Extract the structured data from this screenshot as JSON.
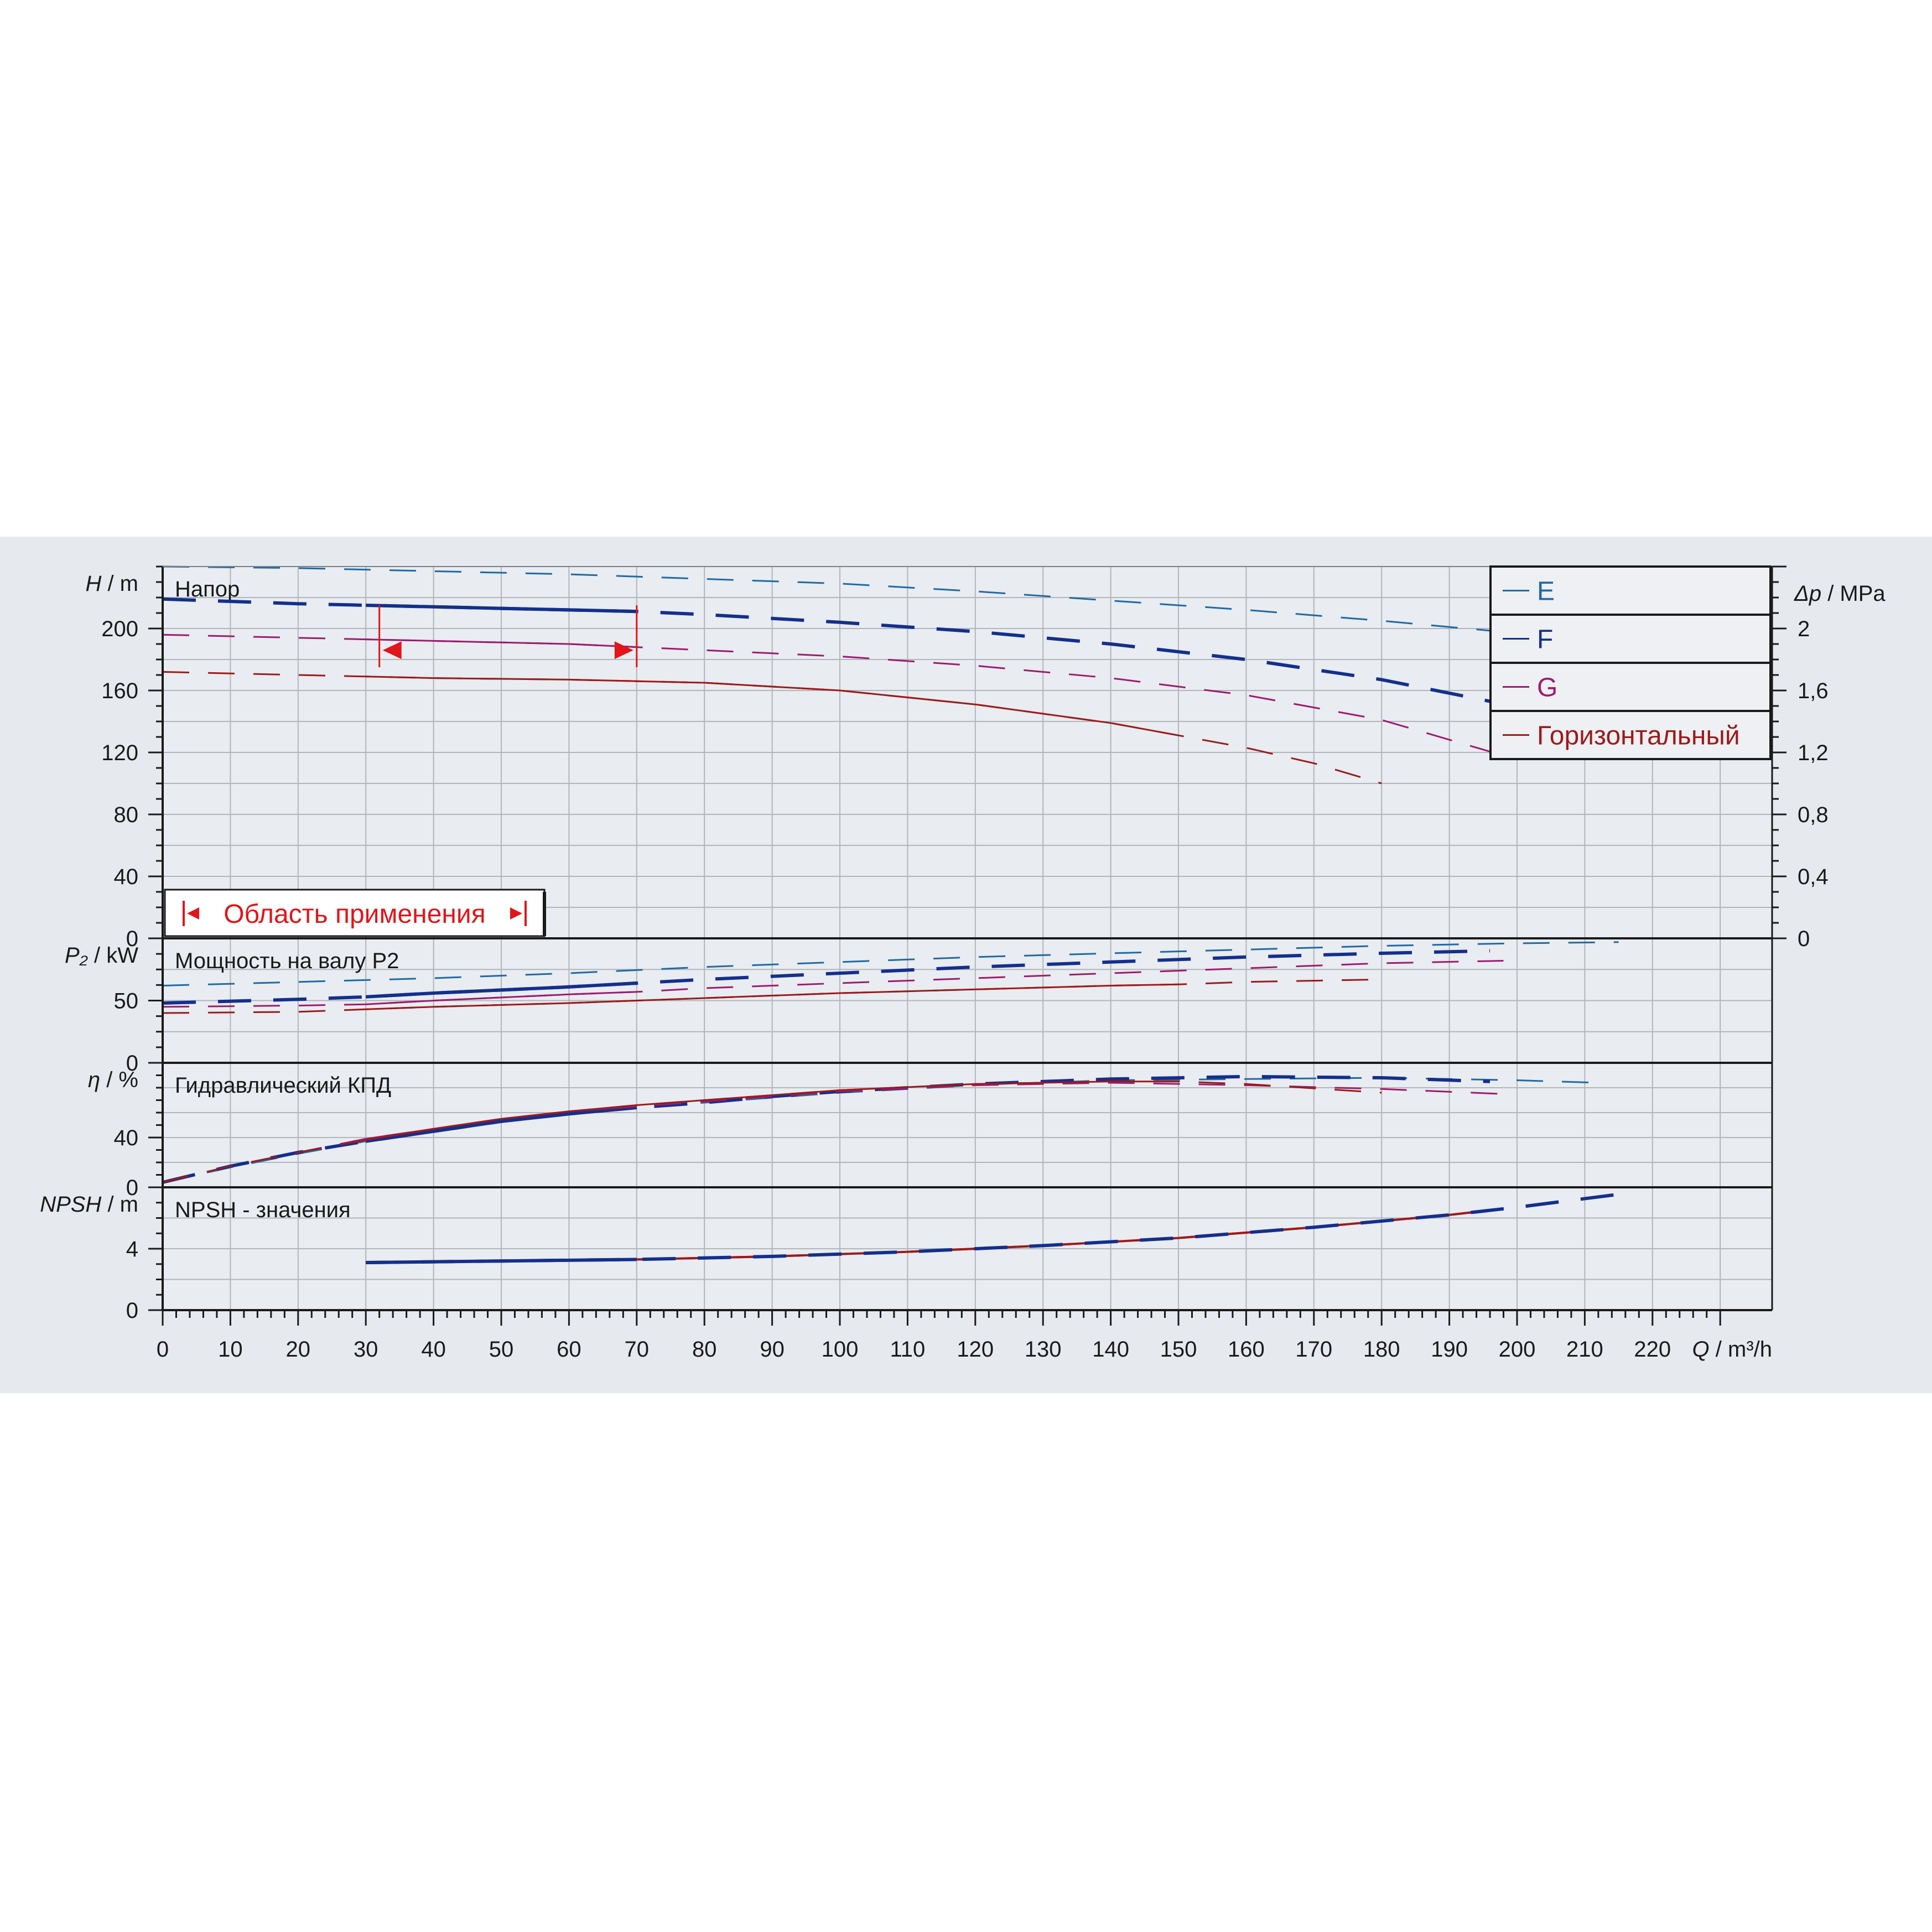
{
  "chart_data": {
    "type": "line",
    "x_axis": {
      "symbol": "Q",
      "unit": "m³/h",
      "range": [
        0,
        230
      ],
      "ticks": [
        "0",
        "10",
        "20",
        "30",
        "40",
        "50",
        "60",
        "70",
        "80",
        "90",
        "100",
        "110",
        "120",
        "130",
        "140",
        "150",
        "160",
        "170",
        "180",
        "190",
        "200",
        "210",
        "220"
      ]
    },
    "legend": {
      "placement": "top-right",
      "items": [
        {
          "label": "E",
          "color": "#1f6aa5"
        },
        {
          "label": "F",
          "color": "#142f8c"
        },
        {
          "label": "G",
          "color": "#9c1c6e"
        },
        {
          "label": "Горизонтальный",
          "color": "#9b1b1b"
        }
      ]
    },
    "panels": [
      {
        "id": "head",
        "title": "Напор",
        "ysymbol": "H",
        "yunit": "m",
        "ylim": [
          0,
          240
        ],
        "yticks": [
          "0",
          "40",
          "80",
          "120",
          "160",
          "200"
        ],
        "secondary_axis": {
          "symbol": "Δp",
          "unit": "MPa",
          "ticks": [
            "0",
            "0,4",
            "0,8",
            "1,2",
            "1,6",
            "2"
          ]
        },
        "series": [
          {
            "name": "E",
            "color": "#1f6aa5",
            "weight": 3,
            "solid_range": null,
            "points": [
              [
                0,
                240
              ],
              [
                20,
                239
              ],
              [
                40,
                237
              ],
              [
                60,
                235
              ],
              [
                80,
                232
              ],
              [
                100,
                229
              ],
              [
                120,
                224
              ],
              [
                140,
                218
              ],
              [
                160,
                212
              ],
              [
                180,
                205
              ],
              [
                200,
                197
              ]
            ]
          },
          {
            "name": "F",
            "color": "#142f8c",
            "weight": 6,
            "solid_range": [
              30,
              70
            ],
            "points": [
              [
                0,
                219
              ],
              [
                20,
                216
              ],
              [
                30,
                215
              ],
              [
                40,
                214
              ],
              [
                60,
                212
              ],
              [
                70,
                211
              ],
              [
                80,
                209
              ],
              [
                100,
                204
              ],
              [
                120,
                198
              ],
              [
                140,
                190
              ],
              [
                160,
                180
              ],
              [
                180,
                167
              ],
              [
                196,
                153
              ]
            ]
          },
          {
            "name": "G",
            "color": "#9c1c6e",
            "weight": 3,
            "solid_range": [
              30,
              70
            ],
            "points": [
              [
                0,
                196
              ],
              [
                20,
                194
              ],
              [
                30,
                193
              ],
              [
                40,
                192
              ],
              [
                60,
                190
              ],
              [
                70,
                188
              ],
              [
                80,
                186
              ],
              [
                100,
                182
              ],
              [
                120,
                176
              ],
              [
                140,
                168
              ],
              [
                160,
                157
              ],
              [
                180,
                141
              ],
              [
                198,
                118
              ]
            ]
          },
          {
            "name": "Горизонтальный",
            "color": "#9b1b1b",
            "weight": 3,
            "solid_range": [
              30,
              150
            ],
            "points": [
              [
                0,
                172
              ],
              [
                20,
                170
              ],
              [
                30,
                169
              ],
              [
                40,
                168
              ],
              [
                60,
                167
              ],
              [
                70,
                166
              ],
              [
                80,
                165
              ],
              [
                100,
                160
              ],
              [
                120,
                151
              ],
              [
                140,
                139
              ],
              [
                150,
                131
              ],
              [
                160,
                123
              ],
              [
                170,
                113
              ],
              [
                180,
                100
              ]
            ]
          }
        ],
        "annotations": {
          "operating_range": {
            "from": 32,
            "to": 70,
            "label": "Область применения"
          }
        }
      },
      {
        "id": "power",
        "title": "Мощность на валу P2",
        "ysymbol": "P₂",
        "yunit": "kW",
        "ylim": [
          0,
          100
        ],
        "yticks": [
          "0",
          "50"
        ],
        "series": [
          {
            "name": "E",
            "color": "#1f6aa5",
            "weight": 3,
            "solid_range": null,
            "points": [
              [
                0,
                62
              ],
              [
                20,
                65
              ],
              [
                40,
                68
              ],
              [
                60,
                72
              ],
              [
                80,
                77
              ],
              [
                100,
                81
              ],
              [
                120,
                85
              ],
              [
                140,
                88
              ],
              [
                160,
                91
              ],
              [
                180,
                94
              ],
              [
                200,
                96
              ],
              [
                215,
                97
              ]
            ]
          },
          {
            "name": "F",
            "color": "#142f8c",
            "weight": 6,
            "solid_range": [
              30,
              70
            ],
            "points": [
              [
                0,
                48
              ],
              [
                20,
                51
              ],
              [
                30,
                53
              ],
              [
                40,
                56
              ],
              [
                60,
                61
              ],
              [
                70,
                64
              ],
              [
                80,
                67
              ],
              [
                100,
                72
              ],
              [
                120,
                77
              ],
              [
                140,
                81
              ],
              [
                160,
                85
              ],
              [
                180,
                88
              ],
              [
                196,
                90
              ]
            ]
          },
          {
            "name": "G",
            "color": "#9c1c6e",
            "weight": 3,
            "solid_range": [
              30,
              70
            ],
            "points": [
              [
                0,
                45
              ],
              [
                20,
                46
              ],
              [
                30,
                47
              ],
              [
                40,
                50
              ],
              [
                60,
                55
              ],
              [
                70,
                57
              ],
              [
                80,
                60
              ],
              [
                100,
                64
              ],
              [
                120,
                68
              ],
              [
                140,
                72
              ],
              [
                160,
                76
              ],
              [
                180,
                80
              ],
              [
                198,
                82
              ]
            ]
          },
          {
            "name": "Горизонтальный",
            "color": "#9b1b1b",
            "weight": 3,
            "solid_range": [
              30,
              150
            ],
            "points": [
              [
                0,
                40
              ],
              [
                20,
                41
              ],
              [
                30,
                43
              ],
              [
                40,
                45
              ],
              [
                60,
                48
              ],
              [
                70,
                50
              ],
              [
                80,
                52
              ],
              [
                100,
                56
              ],
              [
                120,
                59
              ],
              [
                140,
                62
              ],
              [
                150,
                63
              ],
              [
                160,
                65
              ],
              [
                180,
                67
              ]
            ]
          }
        ]
      },
      {
        "id": "efficiency",
        "title": "Гидравлический КПД",
        "ysymbol": "η",
        "yunit": "%",
        "ylim": [
          0,
          100
        ],
        "yticks": [
          "0",
          "40"
        ],
        "series": [
          {
            "name": "E",
            "color": "#1f6aa5",
            "weight": 3,
            "solid_range": null,
            "points": [
              [
                0,
                4
              ],
              [
                10,
                16
              ],
              [
                20,
                27
              ],
              [
                30,
                37
              ],
              [
                40,
                45
              ],
              [
                50,
                53
              ],
              [
                60,
                59
              ],
              [
                70,
                64
              ],
              [
                80,
                68
              ],
              [
                90,
                72
              ],
              [
                100,
                76
              ],
              [
                120,
                82
              ],
              [
                140,
                86
              ],
              [
                160,
                87
              ],
              [
                180,
                88
              ],
              [
                200,
                86
              ],
              [
                212,
                84
              ]
            ]
          },
          {
            "name": "F",
            "color": "#142f8c",
            "weight": 6,
            "solid_range": [
              30,
              70
            ],
            "points": [
              [
                0,
                4
              ],
              [
                10,
                17
              ],
              [
                20,
                28
              ],
              [
                30,
                37
              ],
              [
                40,
                45
              ],
              [
                50,
                53
              ],
              [
                60,
                59
              ],
              [
                70,
                64
              ],
              [
                80,
                68
              ],
              [
                90,
                73
              ],
              [
                100,
                77
              ],
              [
                120,
                83
              ],
              [
                140,
                87
              ],
              [
                160,
                89
              ],
              [
                180,
                88
              ],
              [
                196,
                85
              ]
            ]
          },
          {
            "name": "G",
            "color": "#9c1c6e",
            "weight": 3,
            "solid_range": [
              30,
              70
            ],
            "points": [
              [
                0,
                4
              ],
              [
                10,
                17
              ],
              [
                20,
                28
              ],
              [
                30,
                39
              ],
              [
                40,
                47
              ],
              [
                50,
                55
              ],
              [
                60,
                61
              ],
              [
                70,
                65
              ],
              [
                80,
                69
              ],
              [
                90,
                73
              ],
              [
                100,
                77
              ],
              [
                120,
                82
              ],
              [
                140,
                84
              ],
              [
                160,
                82
              ],
              [
                180,
                79
              ],
              [
                198,
                75
              ]
            ]
          },
          {
            "name": "Горизонтальный",
            "color": "#9b1b1b",
            "weight": 3,
            "solid_range": [
              30,
              150
            ],
            "points": [
              [
                0,
                4
              ],
              [
                10,
                17
              ],
              [
                20,
                28
              ],
              [
                30,
                38
              ],
              [
                40,
                47
              ],
              [
                50,
                55
              ],
              [
                60,
                61
              ],
              [
                70,
                66
              ],
              [
                80,
                70
              ],
              [
                90,
                74
              ],
              [
                100,
                78
              ],
              [
                120,
                83
              ],
              [
                140,
                85
              ],
              [
                150,
                85
              ],
              [
                160,
                83
              ],
              [
                180,
                76
              ]
            ]
          }
        ]
      },
      {
        "id": "npsh",
        "title": "NPSH - значения",
        "ysymbol": "NPSH",
        "yunit": "m",
        "ylim": [
          0,
          8
        ],
        "yticks": [
          "0",
          "4"
        ],
        "series": [
          {
            "name": "Горизонтальный",
            "color": "#9b1b1b",
            "weight": 4,
            "solid_range": [
              30,
              198
            ],
            "points": [
              [
                30,
                3.1
              ],
              [
                50,
                3.2
              ],
              [
                70,
                3.3
              ],
              [
                90,
                3.5
              ],
              [
                110,
                3.8
              ],
              [
                130,
                4.2
              ],
              [
                150,
                4.7
              ],
              [
                170,
                5.4
              ],
              [
                190,
                6.2
              ],
              [
                198,
                6.6
              ]
            ]
          },
          {
            "name": "F",
            "color": "#142f8c",
            "weight": 6,
            "solid_range": [
              30,
              70
            ],
            "points": [
              [
                30,
                3.1
              ],
              [
                50,
                3.2
              ],
              [
                70,
                3.3
              ],
              [
                90,
                3.5
              ],
              [
                110,
                3.8
              ],
              [
                130,
                4.2
              ],
              [
                150,
                4.7
              ],
              [
                170,
                5.4
              ],
              [
                190,
                6.2
              ],
              [
                200,
                6.7
              ],
              [
                216,
                7.6
              ]
            ]
          }
        ]
      }
    ]
  }
}
